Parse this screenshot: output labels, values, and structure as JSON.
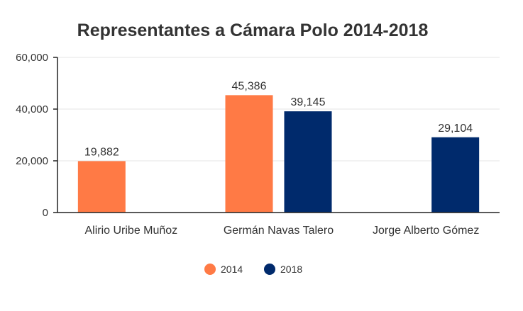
{
  "chart_data": {
    "type": "bar",
    "title": "Representantes a Cámara Polo 2014-2018",
    "xlabel": "",
    "ylabel": "",
    "categories": [
      "Alirio Uribe Muñoz",
      "Germán Navas Talero",
      "Jorge Alberto Gómez"
    ],
    "series": [
      {
        "name": "2014",
        "color": "#FF7A45",
        "values": [
          19882,
          45386,
          null
        ]
      },
      {
        "name": "2018",
        "color": "#002A6C",
        "values": [
          null,
          39145,
          29104
        ]
      }
    ],
    "data_labels": [
      [
        "19,882",
        "45,386",
        ""
      ],
      [
        "",
        "39,145",
        "29,104"
      ]
    ],
    "ylim": [
      0,
      60000
    ],
    "y_ticks": [
      0,
      20000,
      40000,
      60000
    ],
    "y_tick_labels": [
      "0",
      "20,000",
      "40,000",
      "60,000"
    ],
    "grid": true,
    "legend_position": "bottom"
  }
}
